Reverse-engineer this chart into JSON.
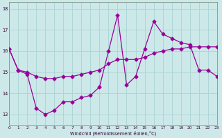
{
  "xlabel": "Windchill (Refroidissement éolien,°C)",
  "bg_color": "#cce8e8",
  "line_color": "#990099",
  "grid_color": "#aad4d4",
  "xmin": 0,
  "xmax": 23,
  "ymin": 12.5,
  "ymax": 18.3,
  "yticks": [
    13,
    14,
    15,
    16,
    17,
    18
  ],
  "hours": [
    0,
    1,
    2,
    3,
    4,
    5,
    6,
    7,
    8,
    9,
    10,
    11,
    12,
    13,
    14,
    15,
    16,
    17,
    18,
    19,
    20,
    21,
    22,
    23
  ],
  "values": [
    16.1,
    15.1,
    14.9,
    13.3,
    13.0,
    13.2,
    13.6,
    13.6,
    13.8,
    13.9,
    14.3,
    16.0,
    17.7,
    14.4,
    14.8,
    16.1,
    17.4,
    16.8,
    16.6,
    16.4,
    16.3,
    15.1,
    15.1,
    14.8
  ],
  "smooth": [
    16.1,
    15.1,
    15.0,
    14.8,
    14.7,
    14.7,
    14.8,
    14.8,
    14.9,
    15.0,
    15.1,
    15.4,
    15.6,
    15.6,
    15.6,
    15.7,
    15.9,
    16.0,
    16.1,
    16.1,
    16.2,
    16.2,
    16.2,
    16.2
  ],
  "marker_size": 2.5,
  "linewidth": 0.9,
  "tick_fontsize": 4.2,
  "xlabel_fontsize": 4.8
}
